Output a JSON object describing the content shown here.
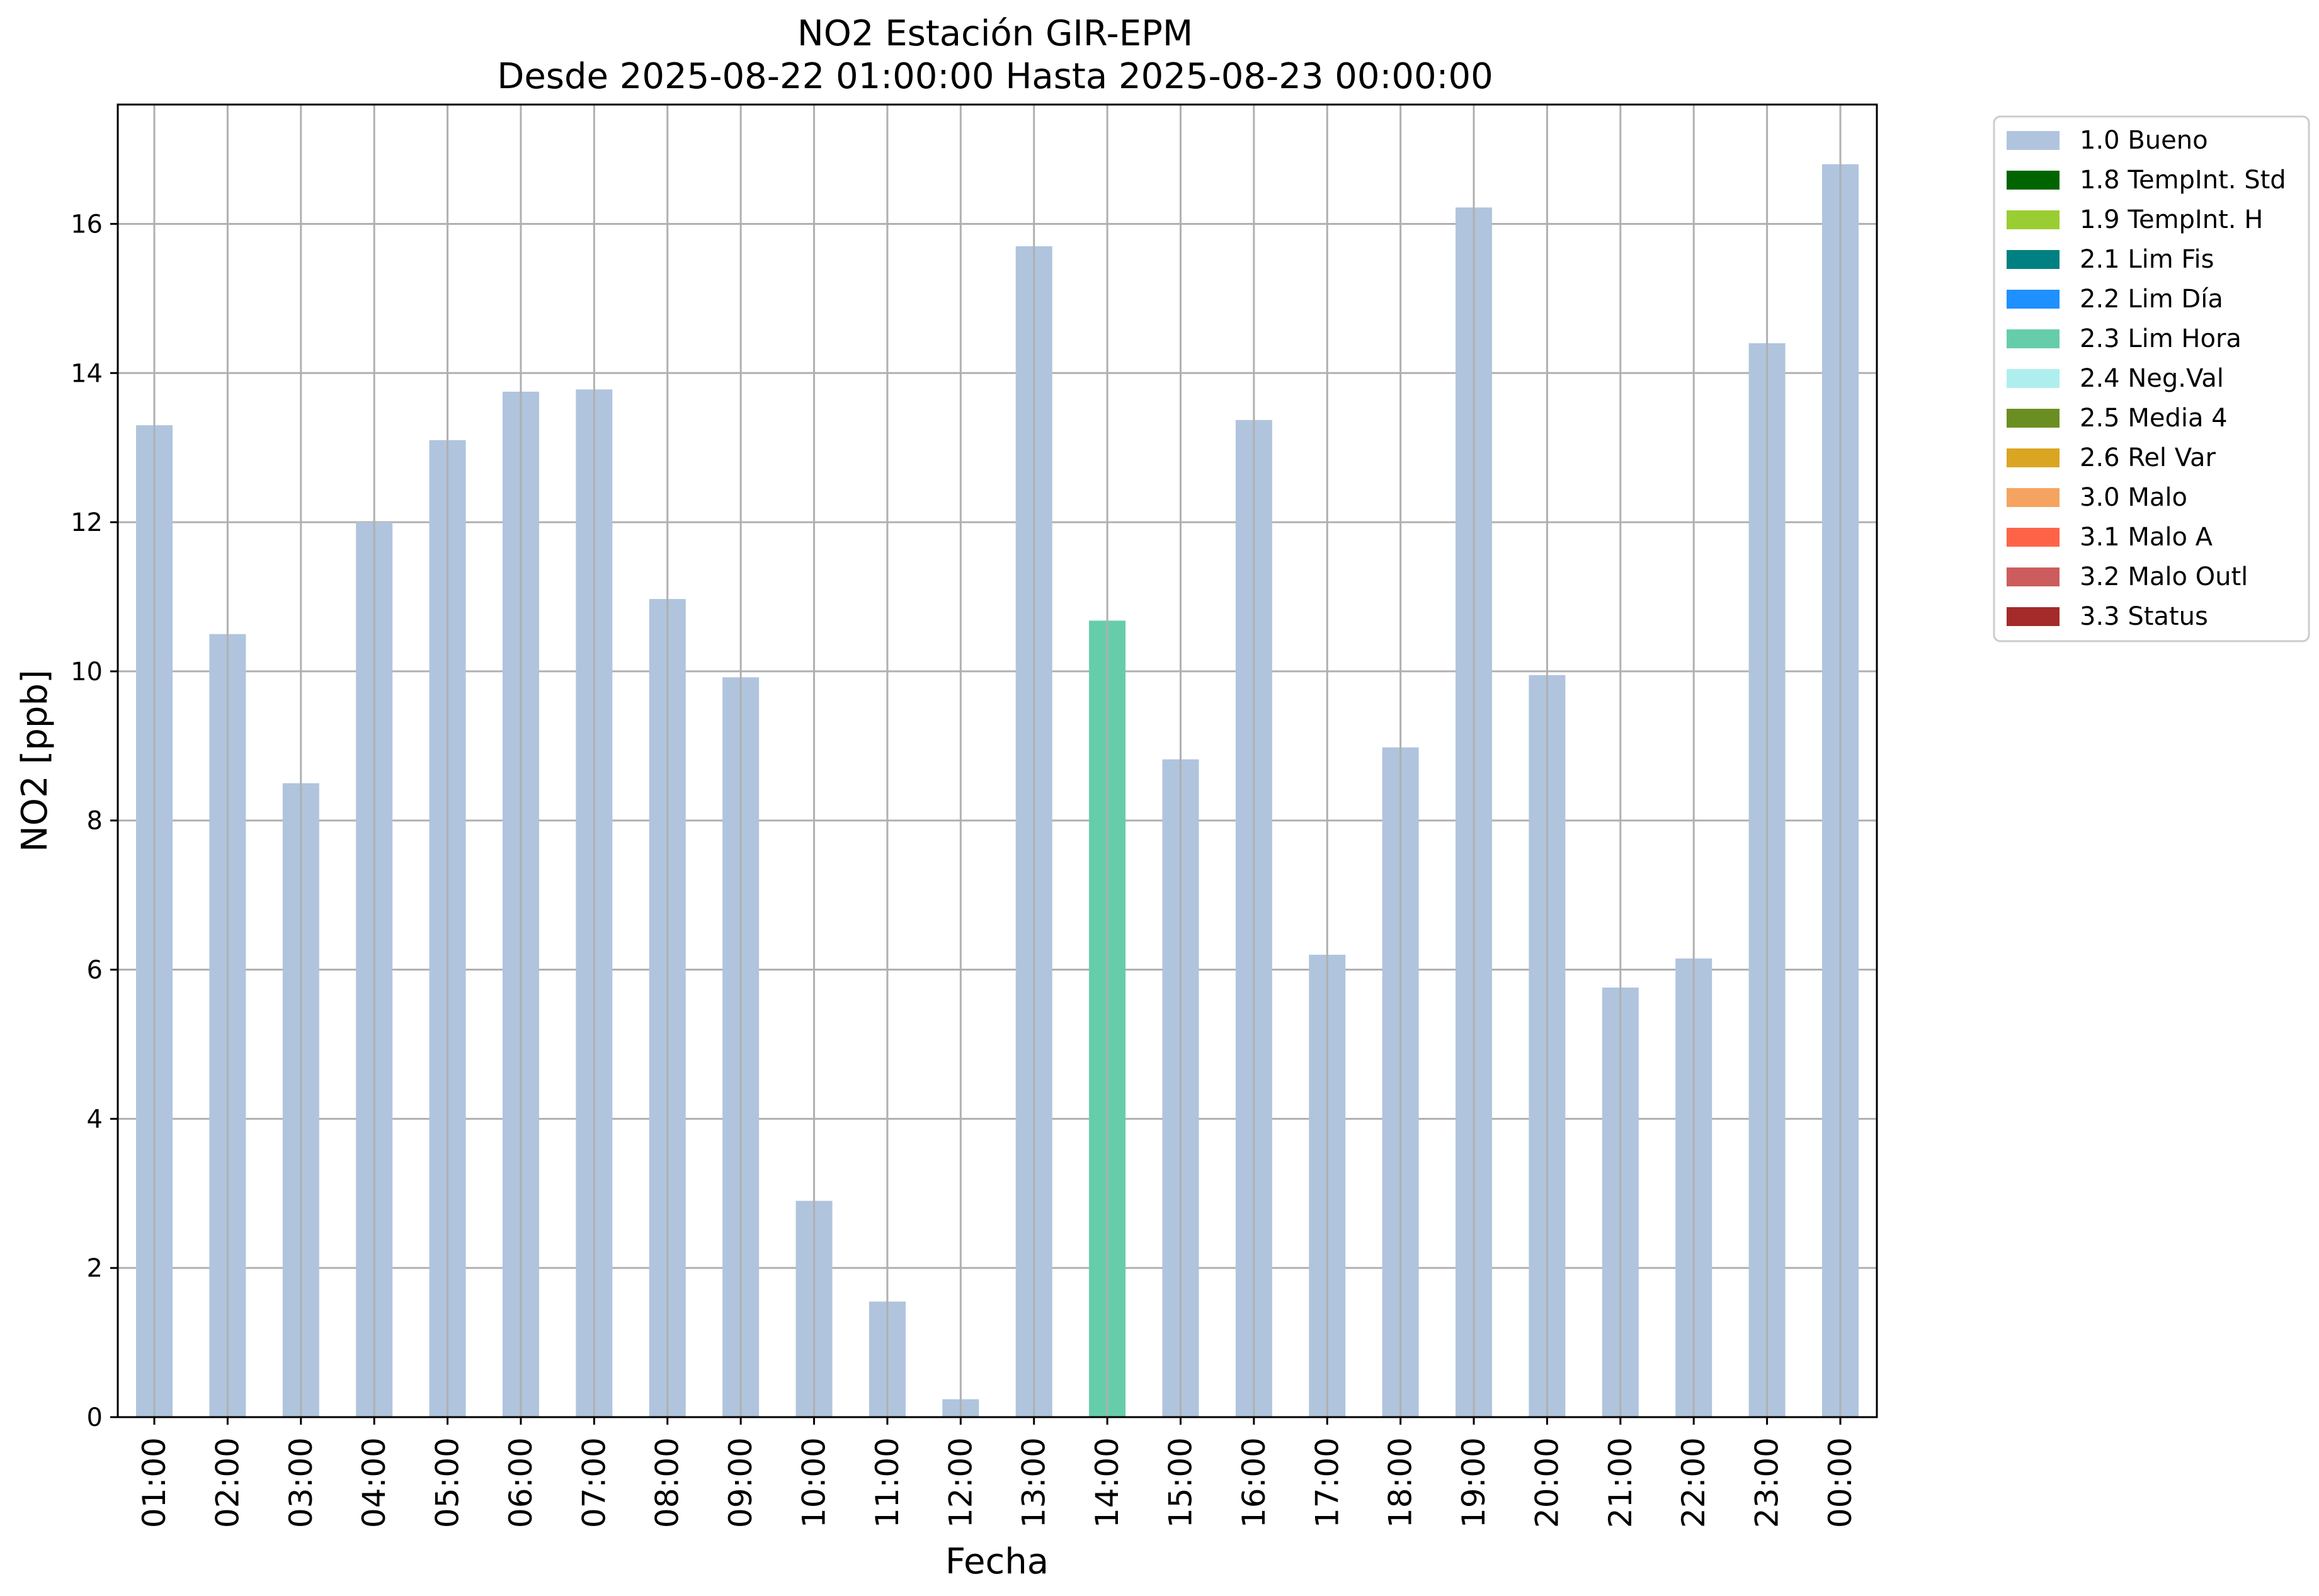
{
  "chart_data": {
    "type": "bar",
    "title": "NO2 Estación GIR-EPM",
    "subtitle": "Desde 2025-08-22 01:00:00 Hasta 2025-08-23 00:00:00",
    "xlabel": "Fecha",
    "ylabel": "NO2 [ppb]",
    "ylim": [
      0,
      17.6
    ],
    "yticks": [
      0,
      2,
      4,
      6,
      8,
      10,
      12,
      14,
      16
    ],
    "grid": true,
    "legend_position": "outside-right",
    "categories": [
      "01:00",
      "02:00",
      "03:00",
      "04:00",
      "05:00",
      "06:00",
      "07:00",
      "08:00",
      "09:00",
      "10:00",
      "11:00",
      "12:00",
      "13:00",
      "14:00",
      "15:00",
      "16:00",
      "17:00",
      "18:00",
      "19:00",
      "20:00",
      "21:00",
      "22:00",
      "23:00",
      "00:00"
    ],
    "values": [
      13.3,
      10.5,
      8.5,
      12.0,
      13.1,
      13.75,
      13.78,
      10.97,
      9.92,
      2.9,
      1.55,
      0.24,
      15.7,
      10.68,
      8.82,
      13.37,
      6.2,
      8.98,
      16.22,
      9.95,
      5.76,
      6.15,
      14.4,
      16.8
    ],
    "flags": [
      "1.0 Bueno",
      "1.0 Bueno",
      "1.0 Bueno",
      "1.0 Bueno",
      "1.0 Bueno",
      "1.0 Bueno",
      "1.0 Bueno",
      "1.0 Bueno",
      "1.0 Bueno",
      "1.0 Bueno",
      "1.0 Bueno",
      "1.0 Bueno",
      "1.0 Bueno",
      "2.3 Lim Hora",
      "1.0 Bueno",
      "1.0 Bueno",
      "1.0 Bueno",
      "1.0 Bueno",
      "1.0 Bueno",
      "1.0 Bueno",
      "1.0 Bueno",
      "1.0 Bueno",
      "1.0 Bueno",
      "1.0 Bueno"
    ],
    "legend": [
      {
        "label": "1.0 Bueno",
        "color": "#b0c4de"
      },
      {
        "label": "1.8 TempInt. Std",
        "color": "#006400"
      },
      {
        "label": "1.9 TempInt. H",
        "color": "#9acd32"
      },
      {
        "label": "2.1 Lim Fis",
        "color": "#008080"
      },
      {
        "label": "2.2 Lim Día",
        "color": "#1e90ff"
      },
      {
        "label": "2.3 Lim Hora",
        "color": "#66cdaa"
      },
      {
        "label": "2.4 Neg.Val",
        "color": "#afeeee"
      },
      {
        "label": "2.5 Media 4",
        "color": "#6b8e23"
      },
      {
        "label": "2.6 Rel Var",
        "color": "#daa520"
      },
      {
        "label": "3.0 Malo",
        "color": "#f4a460"
      },
      {
        "label": "3.1 Malo A",
        "color": "#ff6347"
      },
      {
        "label": "3.2 Malo Outl",
        "color": "#cd5c5c"
      },
      {
        "label": "3.3 Status",
        "color": "#a52a2a"
      }
    ]
  }
}
